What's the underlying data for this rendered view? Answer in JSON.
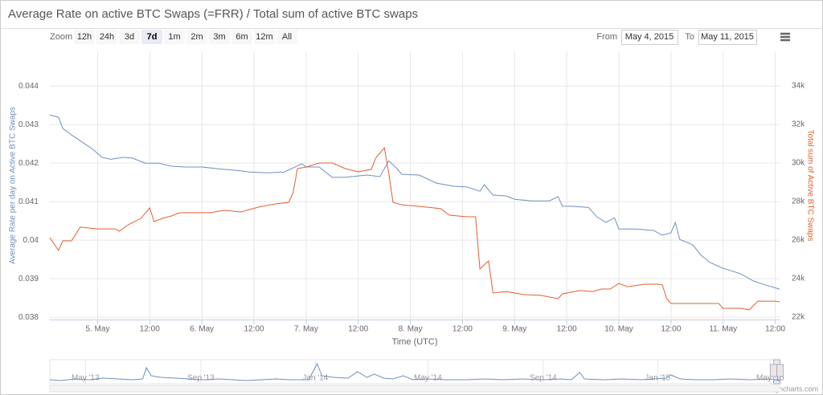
{
  "chart_data": {
    "type": "line",
    "title": "Average Rate on active BTC Swaps (=FRR) / Total sum of active BTC swaps",
    "range_selector": {
      "zoom_label": "Zoom",
      "buttons": [
        {
          "label": "12h"
        },
        {
          "label": "24h"
        },
        {
          "label": "3d"
        },
        {
          "label": "7d",
          "selected": true
        },
        {
          "label": "1m"
        },
        {
          "label": "2m"
        },
        {
          "label": "3m"
        },
        {
          "label": "6m"
        },
        {
          "label": "12m"
        },
        {
          "label": "All"
        }
      ],
      "from_label": "From",
      "from": "May 4, 2015",
      "to_label": "To",
      "to": "May 11, 2015"
    },
    "xtitle": "Time (UTC)",
    "ytitle": "Average Rate per day on Active BTC Swaps",
    "y2title": "Total sum of Active BTC Swaps",
    "xlim": [
      "2015-05-04T13:00",
      "2015-05-11T13:00"
    ],
    "xticks": [
      {
        "value": "2015-05-05T00:00",
        "label": "5. May"
      },
      {
        "value": "2015-05-05T12:00",
        "label": "12:00"
      },
      {
        "value": "2015-05-06T00:00",
        "label": "6. May"
      },
      {
        "value": "2015-05-06T12:00",
        "label": "12:00"
      },
      {
        "value": "2015-05-07T00:00",
        "label": "7. May"
      },
      {
        "value": "2015-05-07T12:00",
        "label": "12:00"
      },
      {
        "value": "2015-05-08T00:00",
        "label": "8. May"
      },
      {
        "value": "2015-05-08T12:00",
        "label": "12:00"
      },
      {
        "value": "2015-05-09T00:00",
        "label": "9. May"
      },
      {
        "value": "2015-05-09T12:00",
        "label": "12:00"
      },
      {
        "value": "2015-05-10T00:00",
        "label": "10. May"
      },
      {
        "value": "2015-05-10T12:00",
        "label": "12:00"
      },
      {
        "value": "2015-05-11T00:00",
        "label": "11. May"
      },
      {
        "value": "2015-05-11T12:00",
        "label": "12:00"
      }
    ],
    "ylim": [
      0.03794,
      0.0449
    ],
    "yticks": [
      0.038,
      0.039,
      0.04,
      0.041,
      0.042,
      0.043,
      0.044
    ],
    "y2lim": [
      21875,
      35792
    ],
    "y2ticks": [
      {
        "value": 22000,
        "label": "22k"
      },
      {
        "value": 24000,
        "label": "24k"
      },
      {
        "value": 26000,
        "label": "26k"
      },
      {
        "value": 28000,
        "label": "28k"
      },
      {
        "value": 30000,
        "label": "30k"
      },
      {
        "value": 32000,
        "label": "32k"
      },
      {
        "value": 34000,
        "label": "34k"
      }
    ],
    "grid": true,
    "series": [
      {
        "color": "#6f8fc0",
        "x": [
          "2015-05-04T13:00",
          "2015-05-04T15:00",
          "2015-05-04T16:00",
          "2015-05-04T18:00",
          "2015-05-04T20:00",
          "2015-05-04T23:00",
          "2015-05-05T01:00",
          "2015-05-05T03:00",
          "2015-05-05T06:00",
          "2015-05-05T08:00",
          "2015-05-05T11:00",
          "2015-05-05T14:00",
          "2015-05-05T17:00",
          "2015-05-05T20:00",
          "2015-05-06T00:00",
          "2015-05-06T04:00",
          "2015-05-06T08:00",
          "2015-05-06T11:00",
          "2015-05-06T15:00",
          "2015-05-06T19:00",
          "2015-05-06T23:00",
          "2015-05-07T00:00",
          "2015-05-07T03:00",
          "2015-05-07T06:00",
          "2015-05-07T09:00",
          "2015-05-07T14:00",
          "2015-05-07T17:00",
          "2015-05-07T19:00",
          "2015-05-07T21:00",
          "2015-05-07T22:00",
          "2015-05-08T02:00",
          "2015-05-08T06:00",
          "2015-05-08T10:00",
          "2015-05-08T13:00",
          "2015-05-08T16:00",
          "2015-05-08T17:00",
          "2015-05-08T19:00",
          "2015-05-08T22:00",
          "2015-05-09T00:00",
          "2015-05-09T04:00",
          "2015-05-09T08:00",
          "2015-05-09T10:00",
          "2015-05-09T11:00",
          "2015-05-09T13:00",
          "2015-05-09T17:00",
          "2015-05-09T19:00",
          "2015-05-09T21:00",
          "2015-05-09T23:00",
          "2015-05-10T00:00",
          "2015-05-10T04:00",
          "2015-05-10T08:00",
          "2015-05-10T10:00",
          "2015-05-10T12:00",
          "2015-05-10T13:00",
          "2015-05-10T14:00",
          "2015-05-10T17:00",
          "2015-05-10T19:00",
          "2015-05-10T21:00",
          "2015-05-11T00:00",
          "2015-05-11T04:00",
          "2015-05-11T07:00",
          "2015-05-11T10:00",
          "2015-05-11T13:00"
        ],
        "values": [
          0.04325,
          0.04319,
          0.0429,
          0.04273,
          0.04258,
          0.04235,
          0.04215,
          0.0421,
          0.04215,
          0.04213,
          0.042,
          0.042,
          0.04192,
          0.0419,
          0.0419,
          0.04185,
          0.04181,
          0.04177,
          0.04175,
          0.04177,
          0.04198,
          0.0419,
          0.0419,
          0.04163,
          0.04163,
          0.04169,
          0.04165,
          0.04206,
          0.04185,
          0.04171,
          0.04169,
          0.04148,
          0.0414,
          0.04138,
          0.04127,
          0.04144,
          0.04117,
          0.04115,
          0.04106,
          0.04102,
          0.04102,
          0.04113,
          0.04088,
          0.04088,
          0.04085,
          0.0406,
          0.04046,
          0.04058,
          0.04029,
          0.04029,
          0.04025,
          0.04013,
          0.04019,
          0.04046,
          0.04002,
          0.03988,
          0.0396,
          0.03942,
          0.03927,
          0.03913,
          0.03894,
          0.03883,
          0.03873
        ]
      },
      {
        "color": "#e0602f",
        "axis": "y2",
        "x": [
          "2015-05-04T13:00",
          "2015-05-04T15:00",
          "2015-05-04T16:00",
          "2015-05-04T18:00",
          "2015-05-04T20:00",
          "2015-05-05T00:00",
          "2015-05-05T04:00",
          "2015-05-05T05:00",
          "2015-05-05T07:00",
          "2015-05-05T10:00",
          "2015-05-05T12:00",
          "2015-05-05T13:00",
          "2015-05-05T15:00",
          "2015-05-05T17:00",
          "2015-05-05T19:00",
          "2015-05-05T22:00",
          "2015-05-06T02:00",
          "2015-05-06T05:00",
          "2015-05-06T09:00",
          "2015-05-06T13:00",
          "2015-05-06T17:00",
          "2015-05-06T20:00",
          "2015-05-06T21:00",
          "2015-05-06T22:00",
          "2015-05-07T00:00",
          "2015-05-07T03:00",
          "2015-05-07T06:00",
          "2015-05-07T09:00",
          "2015-05-07T12:00",
          "2015-05-07T15:00",
          "2015-05-07T16:00",
          "2015-05-07T18:00",
          "2015-05-07T19:00",
          "2015-05-07T20:00",
          "2015-05-07T22:00",
          "2015-05-08T02:00",
          "2015-05-08T07:00",
          "2015-05-08T09:00",
          "2015-05-08T13:00",
          "2015-05-08T15:00",
          "2015-05-08T16:00",
          "2015-05-08T18:00",
          "2015-05-08T19:00",
          "2015-05-08T22:00",
          "2015-05-09T02:00",
          "2015-05-09T06:00",
          "2015-05-09T10:00",
          "2015-05-09T11:00",
          "2015-05-09T15:00",
          "2015-05-09T18:00",
          "2015-05-09T20:00",
          "2015-05-09T22:00",
          "2015-05-10T00:00",
          "2015-05-10T02:00",
          "2015-05-10T06:00",
          "2015-05-10T09:00",
          "2015-05-10T10:00",
          "2015-05-10T11:00",
          "2015-05-10T12:00",
          "2015-05-10T15:00",
          "2015-05-10T19:00",
          "2015-05-10T23:00",
          "2015-05-11T00:00",
          "2015-05-11T04:00",
          "2015-05-11T06:00",
          "2015-05-11T08:00",
          "2015-05-11T12:00",
          "2015-05-11T13:00"
        ],
        "values": [
          26125,
          25460,
          25960,
          25960,
          26670,
          26580,
          26580,
          26460,
          26790,
          27130,
          27670,
          26960,
          27130,
          27250,
          27420,
          27420,
          27420,
          27540,
          27460,
          27710,
          27880,
          27960,
          28460,
          29710,
          29790,
          30000,
          30000,
          29710,
          29540,
          29670,
          30250,
          30790,
          29500,
          27960,
          27830,
          27750,
          27630,
          27290,
          27210,
          27210,
          24500,
          24920,
          23250,
          23330,
          23170,
          23130,
          22960,
          23210,
          23380,
          23330,
          23460,
          23460,
          23750,
          23580,
          23710,
          23710,
          23670,
          22960,
          22710,
          22710,
          22710,
          22710,
          22460,
          22460,
          22380,
          22830,
          22830,
          22790
        ]
      }
    ],
    "navigator": {
      "color": "#6f8fc0",
      "xlim": [
        "2013-03-24",
        "2015-05-11"
      ],
      "xticks": [
        {
          "value": "2013-05-01",
          "label": "May '13"
        },
        {
          "value": "2013-09-01",
          "label": "Sep '13"
        },
        {
          "value": "2014-01-01",
          "label": "Jan '14"
        },
        {
          "value": "2014-05-01",
          "label": "May '14"
        },
        {
          "value": "2014-09-01",
          "label": "Sep '14"
        },
        {
          "value": "2015-01-01",
          "label": "Jan '15"
        },
        {
          "value": "2015-05-01",
          "label": "May '15"
        }
      ],
      "ylim": [
        0,
        0.3
      ],
      "x": [
        "2013-03-24",
        "2013-04-05",
        "2013-04-20",
        "2013-05-05",
        "2013-05-20",
        "2013-06-05",
        "2013-06-20",
        "2013-07-01",
        "2013-07-05",
        "2013-07-10",
        "2013-07-20",
        "2013-08-05",
        "2013-08-20",
        "2013-09-05",
        "2013-09-20",
        "2013-10-05",
        "2013-10-20",
        "2013-11-05",
        "2013-11-20",
        "2013-12-05",
        "2013-12-25",
        "2014-01-03",
        "2014-01-08",
        "2014-01-20",
        "2014-02-05",
        "2014-02-15",
        "2014-02-25",
        "2014-03-05",
        "2014-03-15",
        "2014-03-25",
        "2014-04-05",
        "2014-04-15",
        "2014-05-01",
        "2014-05-20",
        "2014-06-10",
        "2014-07-01",
        "2014-07-20",
        "2014-08-10",
        "2014-09-01",
        "2014-09-20",
        "2014-10-01",
        "2014-10-10",
        "2014-10-15",
        "2014-11-05",
        "2014-11-25",
        "2014-12-15",
        "2015-01-10",
        "2015-01-15",
        "2015-01-25",
        "2015-02-10",
        "2015-03-01",
        "2015-03-20",
        "2015-04-10",
        "2015-05-01",
        "2015-05-11"
      ],
      "values": [
        0.05,
        0.04,
        0.06,
        0.05,
        0.07,
        0.06,
        0.05,
        0.06,
        0.2,
        0.1,
        0.08,
        0.07,
        0.06,
        0.05,
        0.06,
        0.05,
        0.04,
        0.05,
        0.06,
        0.05,
        0.05,
        0.25,
        0.1,
        0.08,
        0.07,
        0.15,
        0.08,
        0.12,
        0.07,
        0.06,
        0.1,
        0.05,
        0.06,
        0.05,
        0.05,
        0.06,
        0.05,
        0.06,
        0.05,
        0.06,
        0.05,
        0.14,
        0.06,
        0.05,
        0.06,
        0.05,
        0.07,
        0.11,
        0.06,
        0.05,
        0.05,
        0.06,
        0.05,
        0.06,
        0.04
      ]
    },
    "credits": "Highcharts.com"
  }
}
